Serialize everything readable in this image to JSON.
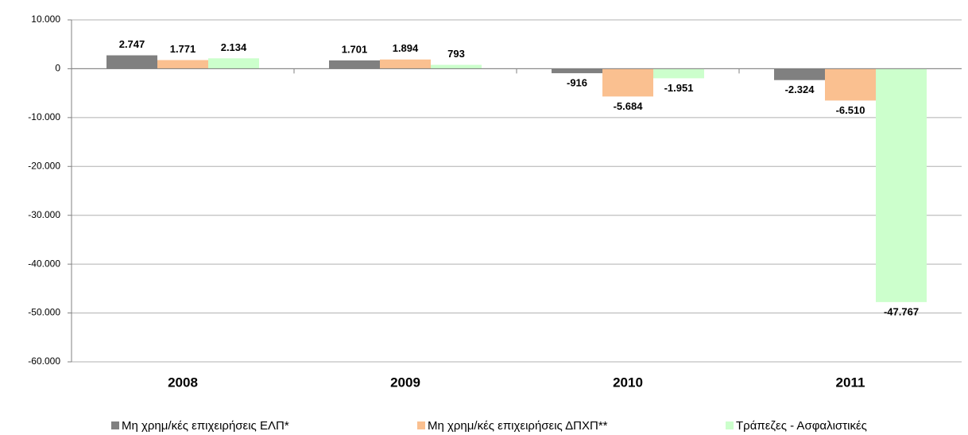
{
  "chart_data": {
    "type": "bar",
    "categories": [
      "2008",
      "2009",
      "2010",
      "2011"
    ],
    "series": [
      {
        "name": "Μη χρημ/κές επιχειρήσεις ΕΛΠ*",
        "color": "#808080",
        "values": [
          2747,
          1701,
          -916,
          -2324
        ],
        "value_labels": [
          "2.747",
          "1.701",
          "-916",
          "-2.324"
        ]
      },
      {
        "name": "Μη χρημ/κές επιχειρήσεις ΔΠΧΠ**",
        "color": "#fac090",
        "values": [
          1771,
          1894,
          -5684,
          -6510
        ],
        "value_labels": [
          "1.771",
          "1.894",
          "-5.684",
          "-6.510"
        ]
      },
      {
        "name": "Τράπεζες - Ασφαλιστικές",
        "color": "#ccffcc",
        "values": [
          2134,
          793,
          -1951,
          -47767
        ],
        "value_labels": [
          "2.134",
          "793",
          "-1.951",
          "-47.767"
        ]
      }
    ],
    "ylim": [
      -60000,
      10000
    ],
    "yticks": [
      {
        "value": 10000,
        "label": "10.000"
      },
      0,
      {
        "value": -10000,
        "label": "-10.000"
      },
      {
        "value": -20000,
        "label": "-20.000"
      },
      {
        "value": -30000,
        "label": "-30.000"
      },
      {
        "value": -40000,
        "label": "-40.000"
      },
      {
        "value": -50000,
        "label": "-50.000"
      },
      {
        "value": -60000,
        "label": "-60.000"
      }
    ],
    "grid": true,
    "legend": "bottom"
  }
}
